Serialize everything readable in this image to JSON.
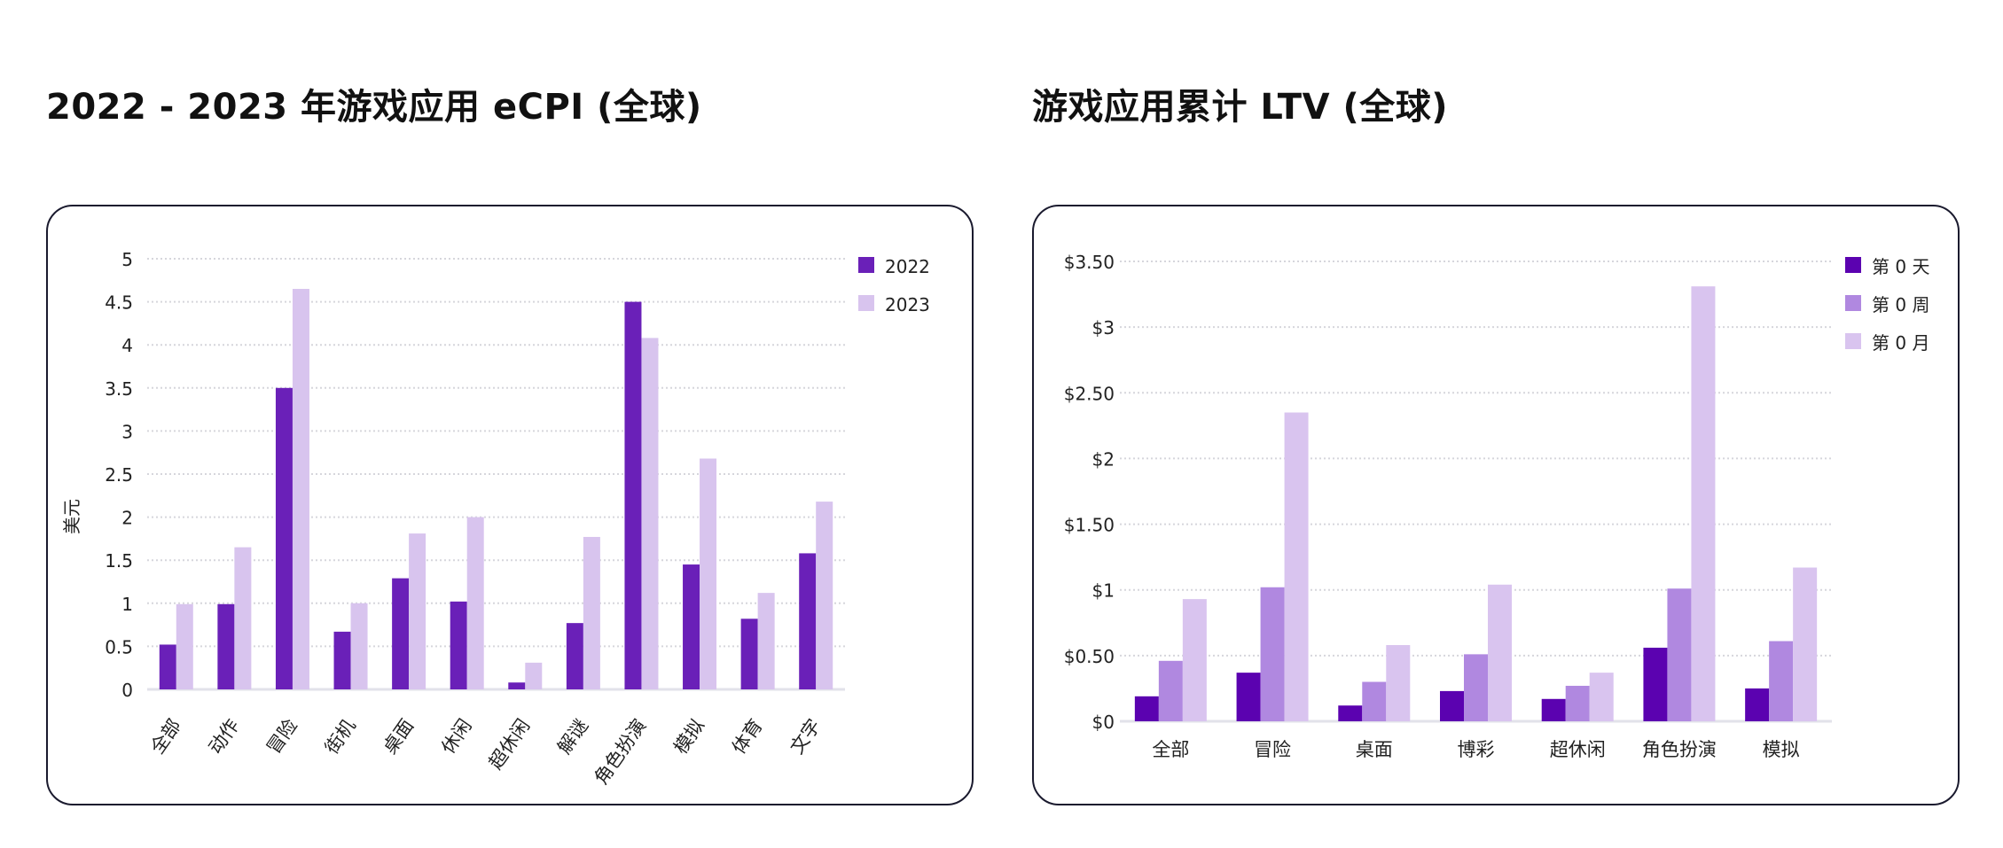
{
  "chart_data": [
    {
      "type": "bar",
      "title": "2022 - 2023 年游戏应用 eCPI (全球)",
      "xlabel": "",
      "ylabel": "美元",
      "ylim": [
        0,
        5
      ],
      "yticks": [
        "0",
        "0.5",
        "1",
        "1.5",
        "2",
        "2.5",
        "3",
        "3.5",
        "4",
        "4.5",
        "5"
      ],
      "grid": true,
      "legend": "top-right",
      "categories": [
        "全部",
        "动作",
        "冒险",
        "街机",
        "桌面",
        "休闲",
        "超休闲",
        "解谜",
        "角色扮演",
        "模拟",
        "体育",
        "文字"
      ],
      "series": [
        {
          "name": "2022",
          "color": "#6a20b8",
          "values": [
            0.52,
            0.99,
            3.5,
            0.67,
            1.29,
            1.02,
            0.08,
            0.77,
            4.5,
            1.45,
            0.82,
            1.58
          ]
        },
        {
          "name": "2023",
          "color": "#d8c4ee",
          "values": [
            0.99,
            1.65,
            4.65,
            1.0,
            1.81,
            2.0,
            0.31,
            1.77,
            4.08,
            2.68,
            1.12,
            2.18
          ]
        }
      ]
    },
    {
      "type": "bar",
      "title": "游戏应用累计 LTV (全球)",
      "xlabel": "",
      "ylabel": "",
      "ylim": [
        0,
        3.5
      ],
      "yticks": [
        "$0",
        "$0.50",
        "$1",
        "$1.50",
        "$2",
        "$2.50",
        "$3",
        "$3.50"
      ],
      "grid": true,
      "legend": "top-right",
      "categories": [
        "全部",
        "冒险",
        "桌面",
        "博彩",
        "超休闲",
        "角色扮演",
        "模拟"
      ],
      "series": [
        {
          "name": "第 0 天",
          "color": "#5b02b0",
          "values": [
            0.19,
            0.37,
            0.12,
            0.23,
            0.17,
            0.56,
            0.25
          ]
        },
        {
          "name": "第 0 周",
          "color": "#b088e0",
          "values": [
            0.46,
            1.02,
            0.3,
            0.51,
            0.27,
            1.01,
            0.61
          ]
        },
        {
          "name": "第 0 月",
          "color": "#d9c4ef",
          "values": [
            0.93,
            2.35,
            0.58,
            1.04,
            0.37,
            3.31,
            1.17
          ]
        }
      ]
    }
  ]
}
